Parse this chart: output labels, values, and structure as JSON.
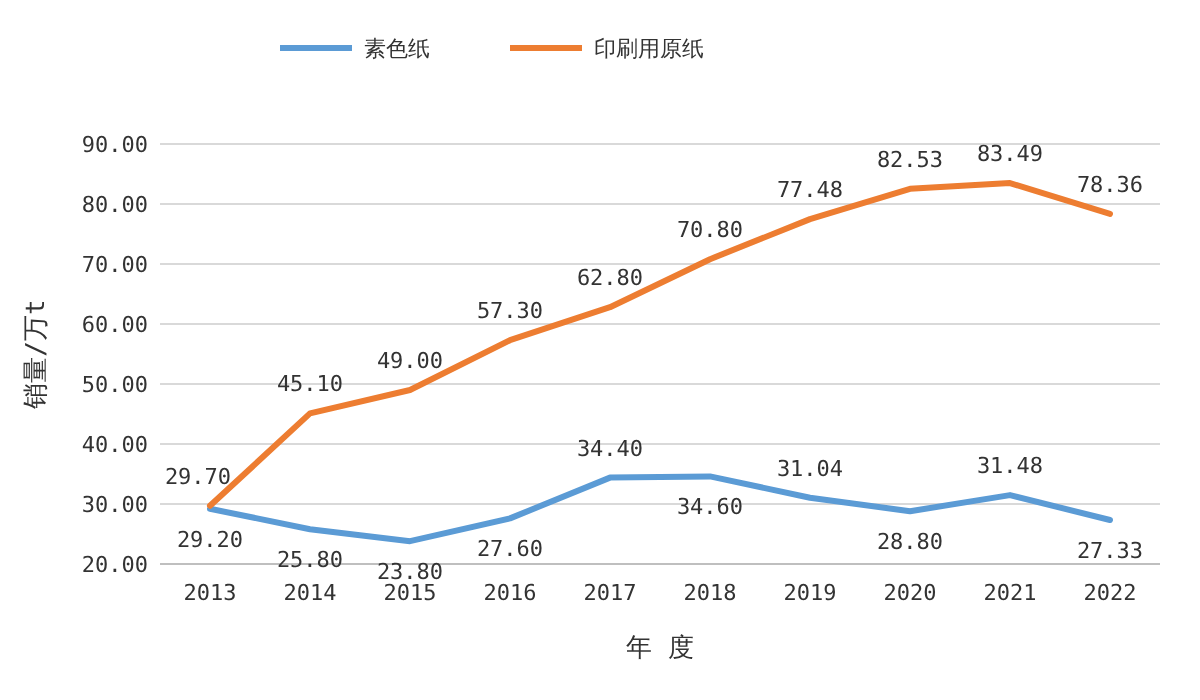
{
  "chart_data": {
    "type": "line",
    "xlabel": "年 度",
    "ylabel": "销量/万t",
    "categories": [
      "2013",
      "2014",
      "2015",
      "2016",
      "2017",
      "2018",
      "2019",
      "2020",
      "2021",
      "2022"
    ],
    "series": [
      {
        "name": "素色纸",
        "color": "#5b9bd5",
        "values": [
          29.2,
          25.8,
          23.8,
          27.6,
          34.4,
          34.6,
          31.04,
          28.8,
          31.48,
          27.33
        ],
        "value_labels": [
          "29.20",
          "25.80",
          "23.80",
          "27.60",
          "34.40",
          "34.60",
          "31.04",
          "28.80",
          "31.48",
          "27.33"
        ]
      },
      {
        "name": "印刷用原纸",
        "color": "#ed7d31",
        "values": [
          29.7,
          45.1,
          49.0,
          57.3,
          62.8,
          70.8,
          77.48,
          82.53,
          83.49,
          78.36
        ],
        "value_labels": [
          "29.70",
          "45.10",
          "49.00",
          "57.30",
          "62.80",
          "70.80",
          "77.48",
          "82.53",
          "83.49",
          "78.36"
        ]
      }
    ],
    "ylim": [
      20,
      90
    ],
    "yticks": [
      {
        "value": 20,
        "label": "20.00"
      },
      {
        "value": 30,
        "label": "30.00"
      },
      {
        "value": 40,
        "label": "40.00"
      },
      {
        "value": 50,
        "label": "50.00"
      },
      {
        "value": 60,
        "label": "60.00"
      },
      {
        "value": 70,
        "label": "70.00"
      },
      {
        "value": 80,
        "label": "80.00"
      },
      {
        "value": 90,
        "label": "90.00"
      }
    ],
    "grid": "y",
    "legend": "top",
    "marker": "none",
    "line_style": "solid"
  }
}
